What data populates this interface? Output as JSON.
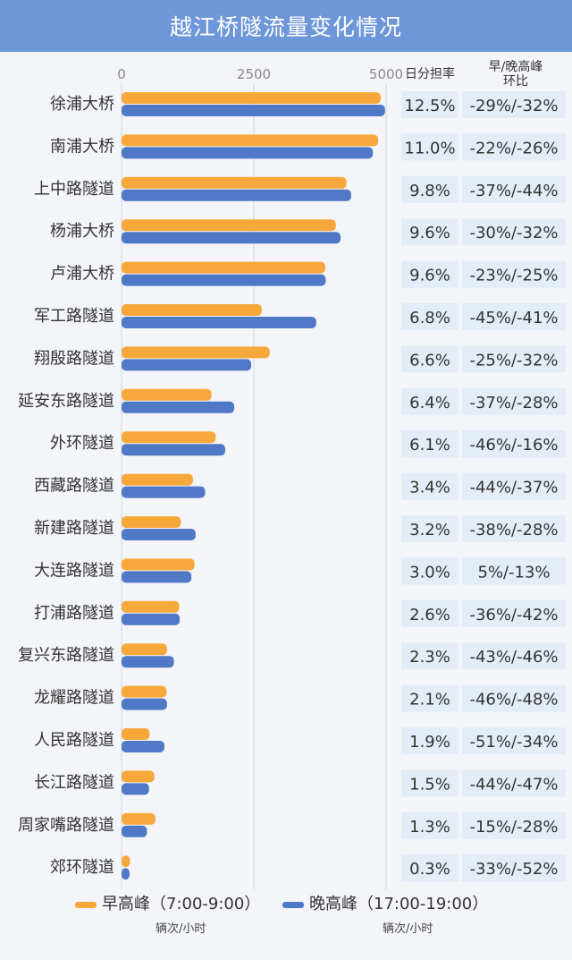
{
  "title": "越江桥隧流量变化情况",
  "columns": {
    "share_header": "日分担率",
    "change_header_line1": "早/晚高峰",
    "change_header_line2": "环比"
  },
  "chart_data": {
    "type": "bar",
    "orientation": "horizontal",
    "title": "越江桥隧流量变化情况",
    "xlim": [
      0,
      5000
    ],
    "x_ticks": [
      "0",
      "2500",
      "5000"
    ],
    "grid": true,
    "legend_position": "bottom",
    "categories": [
      "徐浦大桥",
      "南浦大桥",
      "上中路隧道",
      "杨浦大桥",
      "卢浦大桥",
      "军工路隧道",
      "翔殷路隧道",
      "延安东路隧道",
      "外环隧道",
      "西藏路隧道",
      "新建路隧道",
      "大连路隧道",
      "打浦路隧道",
      "复兴东路隧道",
      "龙耀路隧道",
      "人民路隧道",
      "长江路隧道",
      "周家嘴路隧道",
      "郊环隧道"
    ],
    "series": [
      {
        "name": "早高峰（7:00-9:00）",
        "unit": "辆次/小时",
        "color": "#f7a83a",
        "values": [
          4900,
          4850,
          4250,
          4050,
          3850,
          2650,
          2800,
          1700,
          1780,
          1350,
          1120,
          1380,
          1090,
          860,
          850,
          530,
          620,
          640,
          160
        ]
      },
      {
        "name": "晚高峰（17:00-19:00）",
        "unit": "辆次/小时",
        "color": "#4f79c6",
        "values": [
          4980,
          4750,
          4340,
          4140,
          3860,
          3680,
          2450,
          2130,
          1960,
          1580,
          1400,
          1320,
          1100,
          990,
          860,
          810,
          520,
          480,
          150
        ]
      }
    ]
  },
  "share": [
    "12.5%",
    "11.0%",
    "9.8%",
    "9.6%",
    "9.6%",
    "6.8%",
    "6.6%",
    "6.4%",
    "6.1%",
    "3.4%",
    "3.2%",
    "3.0%",
    "2.6%",
    "2.3%",
    "2.1%",
    "1.9%",
    "1.5%",
    "1.3%",
    "0.3%"
  ],
  "change": [
    "-29%/-32%",
    "-22%/-26%",
    "-37%/-44%",
    "-30%/-32%",
    "-23%/-25%",
    "-45%/-41%",
    "-25%/-32%",
    "-37%/-28%",
    "-46%/-16%",
    "-44%/-37%",
    "-38%/-28%",
    "5%/-13%",
    "-36%/-42%",
    "-43%/-46%",
    "-46%/-48%",
    "-51%/-34%",
    "-44%/-47%",
    "-15%/-28%",
    "-33%/-52%"
  ],
  "colors": {
    "title_bg": "#6e97d9",
    "cell_bg": "#e4ecf8",
    "grid": "#cfd6e2"
  }
}
